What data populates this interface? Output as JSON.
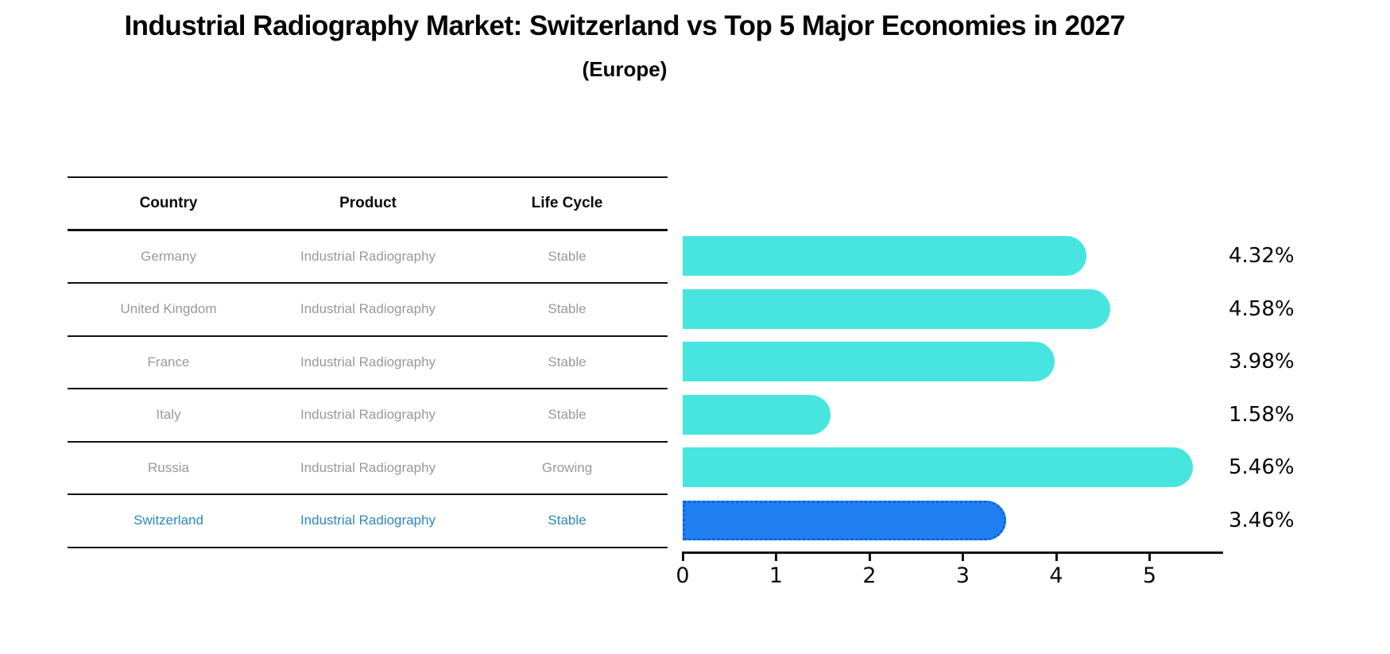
{
  "header": {
    "title": "Industrial Radiography Market: Switzerland vs Top 5 Major Economies in 2027",
    "subtitle": "(Europe)"
  },
  "table": {
    "columns": [
      "Country",
      "Product",
      "Life Cycle"
    ],
    "rows": [
      {
        "country": "Germany",
        "product": "Industrial Radiography",
        "life_cycle": "Stable",
        "highlight": false
      },
      {
        "country": "United Kingdom",
        "product": "Industrial Radiography",
        "life_cycle": "Stable",
        "highlight": false
      },
      {
        "country": "France",
        "product": "Industrial Radiography",
        "life_cycle": "Stable",
        "highlight": false
      },
      {
        "country": "Italy",
        "product": "Industrial Radiography",
        "life_cycle": "Stable",
        "highlight": false
      },
      {
        "country": "Russia",
        "product": "Industrial Radiography",
        "life_cycle": "Growing",
        "highlight": false
      },
      {
        "country": "Switzerland",
        "product": "Industrial Radiography",
        "life_cycle": "Stable",
        "highlight": true
      }
    ]
  },
  "chart_data": {
    "type": "bar",
    "orientation": "horizontal",
    "title": "Industrial Radiography Market: Switzerland vs Top 5 Major Economies in 2027",
    "subtitle": "(Europe)",
    "categories": [
      "Germany",
      "United Kingdom",
      "France",
      "Italy",
      "Russia",
      "Switzerland"
    ],
    "values": [
      4.32,
      4.58,
      3.98,
      1.58,
      5.46,
      3.46
    ],
    "labels": [
      "4.32%",
      "4.58%",
      "3.98%",
      "1.58%",
      "5.46%",
      "3.46%"
    ],
    "x_ticks": [
      0,
      1,
      2,
      3,
      4,
      5
    ],
    "xlim": [
      0,
      5.78
    ],
    "xlabel": "",
    "ylabel": "",
    "grid": false,
    "legend": "none",
    "bar_color": "#48E5E0",
    "highlight_color": "#2080F2",
    "highlight_border_color": "#0e63d8",
    "highlight_index": 5,
    "highlight_text_color": "#2E86C1"
  }
}
